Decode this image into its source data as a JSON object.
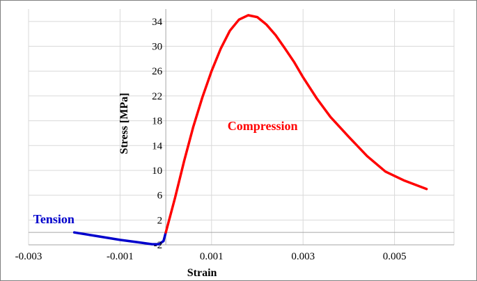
{
  "chart_data": {
    "type": "line",
    "title": "",
    "xlabel": "Strain",
    "ylabel": "Stress [MPa]",
    "xlim": [
      -0.003,
      0.0063
    ],
    "ylim": [
      -2,
      36
    ],
    "x_ticks": [
      -0.003,
      -0.001,
      0.001,
      0.003,
      0.005
    ],
    "x_tick_labels": [
      "-0.003",
      "-0.001",
      "0.001",
      "0.003",
      "0.005"
    ],
    "y_ticks": [
      -2,
      2,
      6,
      10,
      14,
      18,
      22,
      26,
      30,
      34
    ],
    "y_tick_labels": [
      "-2",
      "2",
      "6",
      "10",
      "14",
      "18",
      "22",
      "26",
      "30",
      "34"
    ],
    "grid": true,
    "legend": "none",
    "series": [
      {
        "name": "Tension",
        "color": "#0000cc",
        "x": [
          -0.002,
          -0.0015,
          -0.001,
          -0.0006,
          -0.0003,
          -0.00015,
          -5e-05,
          0.0
        ],
        "y": [
          0.0,
          -0.6,
          -1.2,
          -1.6,
          -1.9,
          -1.9,
          -1.4,
          0.0
        ]
      },
      {
        "name": "Compression",
        "color": "#ff0000",
        "x": [
          0.0,
          0.0002,
          0.0004,
          0.0006,
          0.0008,
          0.001,
          0.0012,
          0.0014,
          0.0016,
          0.0018,
          0.002,
          0.0022,
          0.0024,
          0.0026,
          0.0028,
          0.003,
          0.0033,
          0.0036,
          0.004,
          0.0044,
          0.0048,
          0.0052,
          0.0057
        ],
        "y": [
          0.0,
          5.5,
          11.5,
          17.0,
          21.8,
          26.0,
          29.6,
          32.5,
          34.3,
          35.0,
          34.7,
          33.5,
          31.8,
          29.7,
          27.5,
          25.0,
          21.6,
          18.6,
          15.4,
          12.3,
          9.8,
          8.4,
          7.0
        ]
      }
    ],
    "annotations": [
      {
        "text": "Tension",
        "x": -0.0029,
        "y": 1.5,
        "color": "#0000cc"
      },
      {
        "text": "Compression",
        "x": 0.00135,
        "y": 16.5,
        "color": "#ff0000"
      }
    ]
  }
}
